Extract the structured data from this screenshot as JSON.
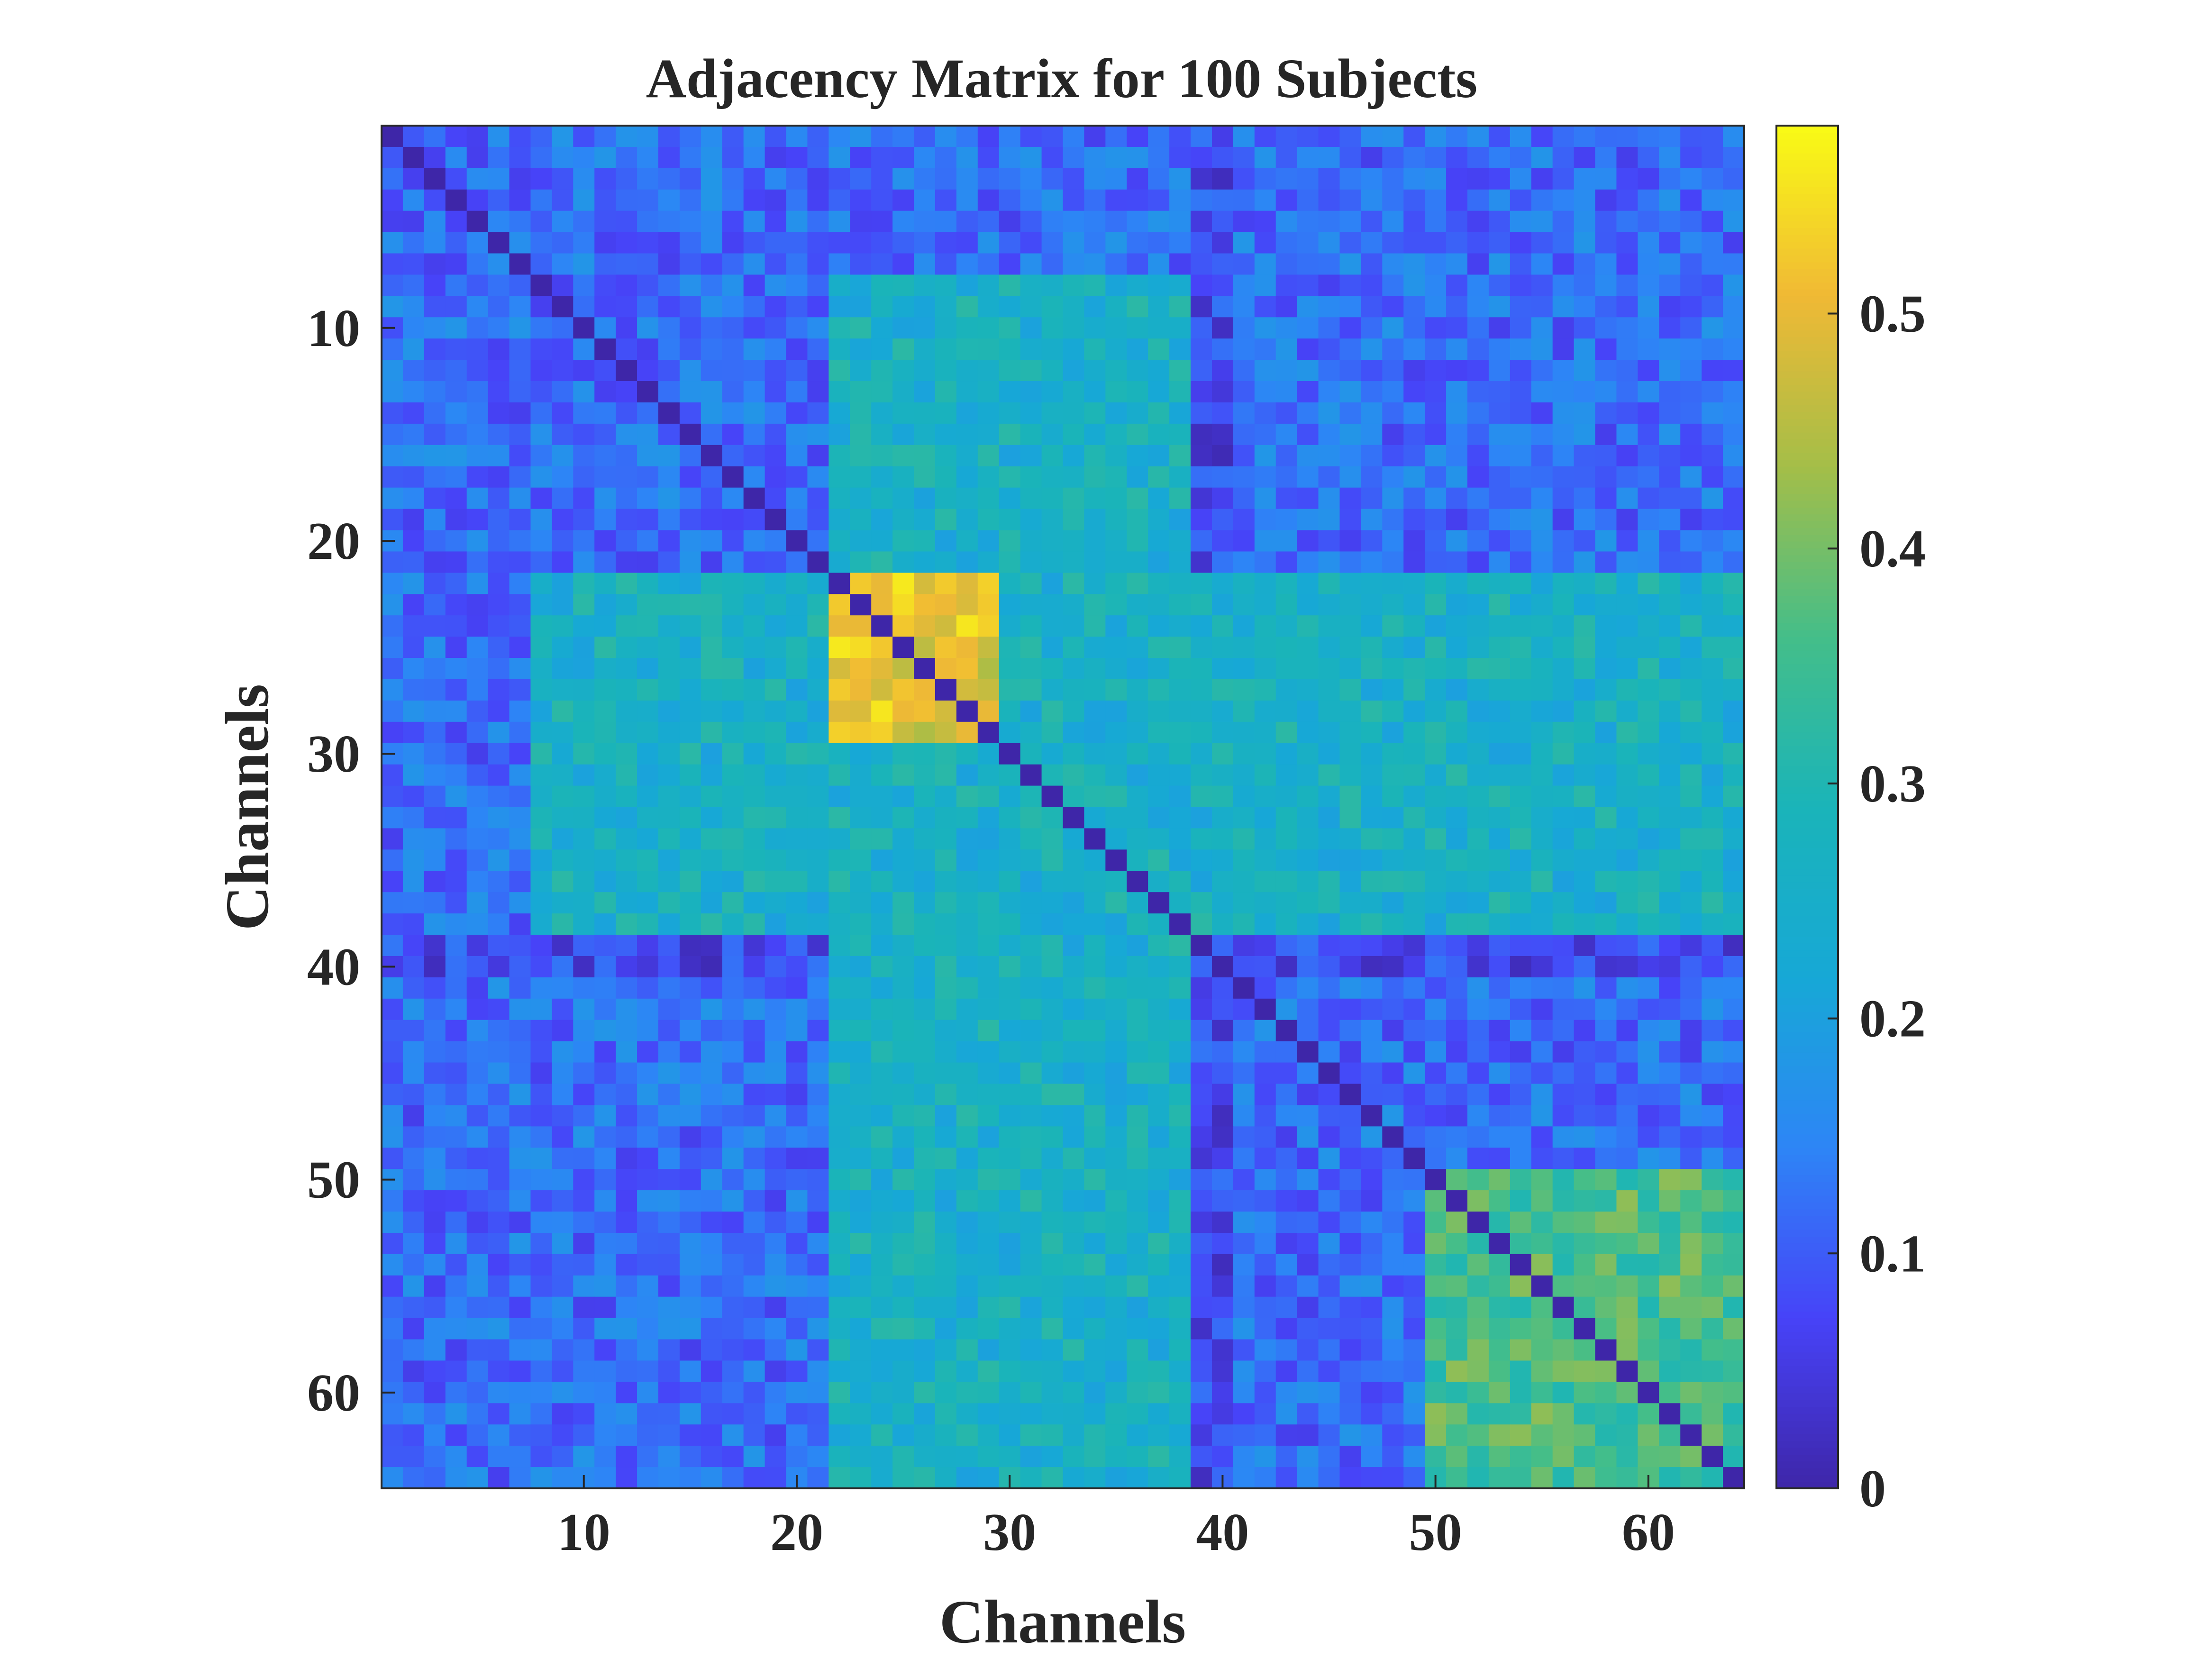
{
  "chart_data": {
    "type": "heatmap",
    "title": "Adjacency Matrix for 100 Subjects",
    "xlabel": "Channels",
    "ylabel": "Channels",
    "n": 64,
    "x_ticks": [
      10,
      20,
      30,
      40,
      50,
      60
    ],
    "y_ticks": [
      10,
      20,
      30,
      40,
      50,
      60
    ],
    "colorbar": {
      "min": 0,
      "max": 0.58,
      "ticks": [
        0,
        0.1,
        0.2,
        0.3,
        0.4,
        0.5
      ],
      "tick_labels": [
        "0",
        "0.1",
        "0.2",
        "0.3",
        "0.4",
        "0.5"
      ]
    },
    "colormap": "parula",
    "colormap_stops": [
      "#3e26a8",
      "#4743f8",
      "#2d85f6",
      "#17a8d6",
      "#1ab4b9",
      "#44be89",
      "#a4be48",
      "#f0b935",
      "#f9fb15"
    ],
    "diagonal_value": 0.0,
    "regions": [
      {
        "rows": [
          22,
          29
        ],
        "cols": [
          22,
          29
        ],
        "value": 0.5
      },
      {
        "rows": [
          22,
          38
        ],
        "cols": [
          8,
          64
        ],
        "value": 0.26
      },
      {
        "rows": [
          39,
          40
        ],
        "cols": [
          1,
          64
        ],
        "value": 0.07
      },
      {
        "rows": [
          41,
          64
        ],
        "cols": [
          22,
          38
        ],
        "value": 0.31
      },
      {
        "rows": [
          50,
          64
        ],
        "cols": [
          50,
          64
        ],
        "value": 0.36
      },
      {
        "rows": [
          61,
          63
        ],
        "cols": [
          60,
          63
        ],
        "value": 0.5
      },
      {
        "rows": [
          55,
          58
        ],
        "cols": [
          55,
          57
        ],
        "value": 0.45
      },
      {
        "rows": [
          51,
          53
        ],
        "cols": [
          51,
          53
        ],
        "value": 0.46
      },
      {
        "rows": [
          1,
          21
        ],
        "cols": [
          1,
          64
        ],
        "value": 0.12
      },
      {
        "rows": [
          41,
          64
        ],
        "cols": [
          1,
          21
        ],
        "value": 0.1
      },
      {
        "rows": [
          8,
          21
        ],
        "cols": [
          8,
          21
        ],
        "value": 0.22
      }
    ]
  }
}
